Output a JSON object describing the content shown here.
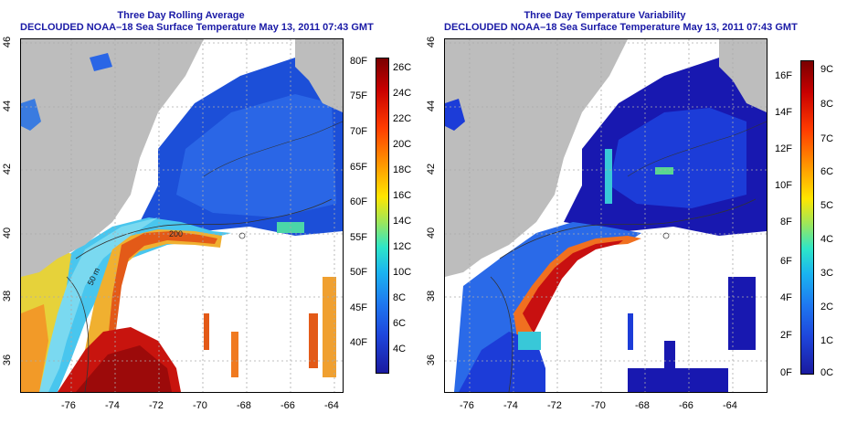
{
  "panels": [
    {
      "title_line1": "Three Day Rolling Average",
      "title_line2": "DECLOUDED NOAA–18 Sea Surface Temperature May 13, 2011 07:43 GMT",
      "x_ticks": [
        "-76",
        "-74",
        "-72",
        "-70",
        "-68",
        "-66",
        "-64"
      ],
      "y_ticks": [
        "46",
        "44",
        "42",
        "40",
        "38",
        "36"
      ],
      "annotations": [
        "200",
        "50 m"
      ],
      "colorbar_left": [
        "80F",
        "75F",
        "70F",
        "65F",
        "60F",
        "55F",
        "50F",
        "45F",
        "40F"
      ],
      "colorbar_right": [
        "26C",
        "24C",
        "22C",
        "20C",
        "18C",
        "16C",
        "14C",
        "12C",
        "10C",
        "8C",
        "6C",
        "4C"
      ]
    },
    {
      "title_line1": "Three Day Temperature Variability",
      "title_line2": "DECLOUDED NOAA–18 Sea Surface Temperature May 13, 2011 07:43 GMT",
      "x_ticks": [
        "-76",
        "-74",
        "-72",
        "-70",
        "-68",
        "-66",
        "-64"
      ],
      "y_ticks": [
        "46",
        "44",
        "42",
        "40",
        "38",
        "36"
      ],
      "colorbar_left": [
        "16F",
        "14F",
        "12F",
        "10F",
        "8F",
        "6F",
        "4F",
        "2F",
        "0F"
      ],
      "colorbar_right": [
        "9C",
        "8C",
        "7C",
        "6C",
        "5C",
        "4C",
        "3C",
        "2C",
        "1C",
        "0C"
      ]
    }
  ],
  "colors": {
    "title": "#1a1aa6",
    "land": "#bdbdbd",
    "no_data": "#ffffff",
    "grid": "#aaaaaa"
  }
}
